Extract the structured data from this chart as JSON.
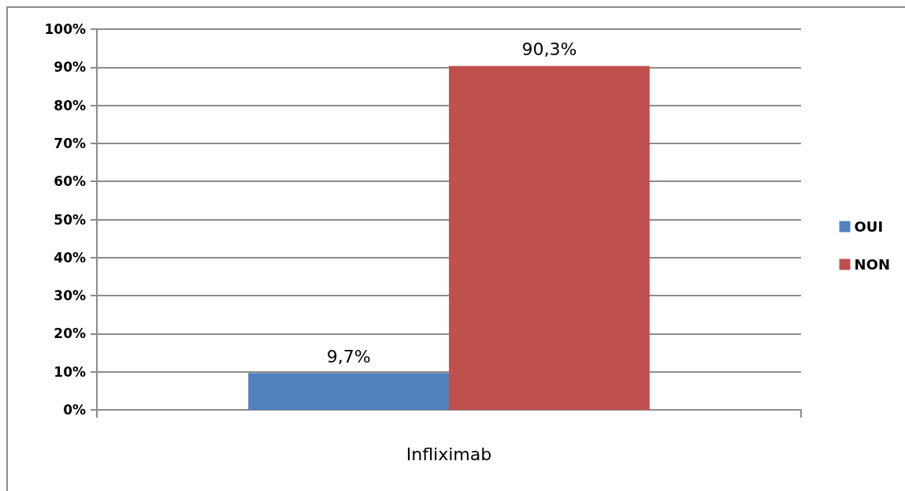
{
  "chart_data": {
    "type": "bar",
    "categories": [
      "Infliximab"
    ],
    "series": [
      {
        "name": "OUI",
        "color": "#4f81bd",
        "values": [
          9.7
        ],
        "value_labels": [
          "9,7%"
        ]
      },
      {
        "name": "NON",
        "color": "#c0504d",
        "values": [
          90.3
        ],
        "value_labels": [
          "90,3%"
        ]
      }
    ],
    "ylim": [
      0,
      100
    ],
    "yticks": [
      {
        "value": 0,
        "label": "0%"
      },
      {
        "value": 10,
        "label": "10%"
      },
      {
        "value": 20,
        "label": "20%"
      },
      {
        "value": 30,
        "label": "30%"
      },
      {
        "value": 40,
        "label": "40%"
      },
      {
        "value": 50,
        "label": "50%"
      },
      {
        "value": 60,
        "label": "60%"
      },
      {
        "value": 70,
        "label": "70%"
      },
      {
        "value": 80,
        "label": "80%"
      },
      {
        "value": 90,
        "label": "90%"
      },
      {
        "value": 100,
        "label": "100%"
      }
    ],
    "grid": "y",
    "legend": "right"
  }
}
